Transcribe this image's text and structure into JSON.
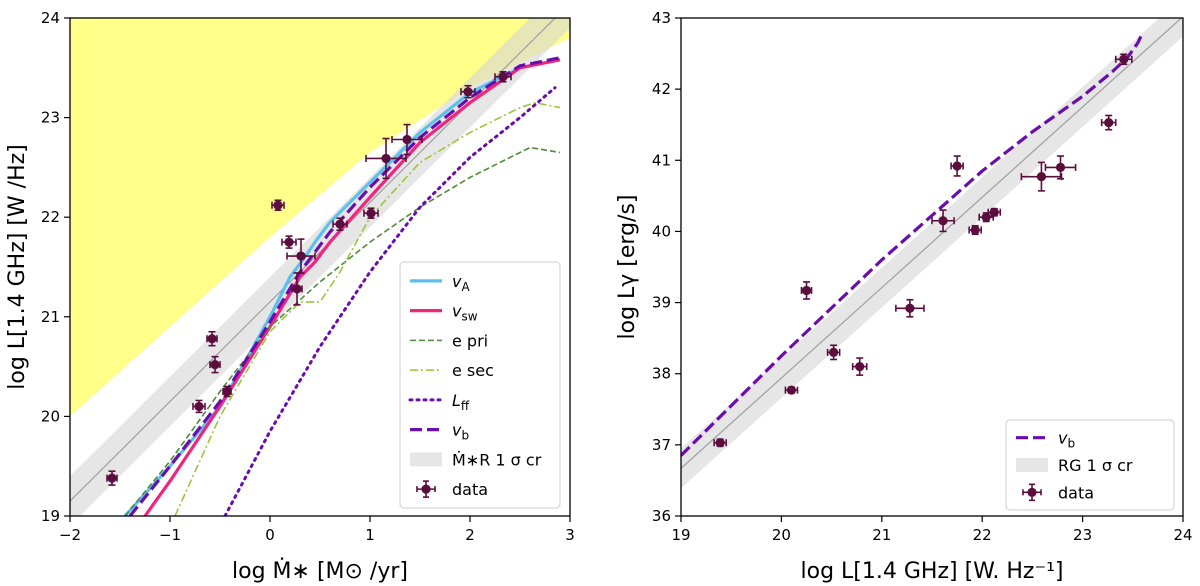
{
  "colors": {
    "yellow_region": "#ffff8a",
    "band": "#d6d6d6",
    "band_line": "#9e9e9e",
    "vA": "#5bc0eb",
    "vsw": "#f0257d",
    "e_pri": "#4e8a3c",
    "e_sec": "#9bc53d",
    "Lff": "#6a0dad",
    "vb": "#6a0dad",
    "data": "#5b0e3d"
  },
  "chart_data": [
    {
      "type": "line",
      "xlim": [
        -2,
        3
      ],
      "ylim": [
        19,
        24
      ],
      "xticks": [
        "−2",
        "−1",
        "0",
        "1",
        "2",
        "3"
      ],
      "yticks": [
        "19",
        "20",
        "21",
        "22",
        "23",
        "24"
      ],
      "xlabel": "log Ṁ∗ [M⊙ /yr]",
      "ylabel": "log L[1.4 GHz] [W /Hz]",
      "yellow_region": [
        [
          -2,
          20.0
        ],
        [
          0,
          21.8
        ],
        [
          1,
          22.65
        ],
        [
          2,
          23.3
        ],
        [
          3,
          23.8
        ],
        [
          3,
          24
        ],
        [
          -2,
          24
        ]
      ],
      "band": {
        "slope": 1.0,
        "intercept": 21.15,
        "half_width": 0.25,
        "x_range": [
          -2,
          3
        ]
      },
      "series": [
        {
          "name": "vA",
          "style": "solid",
          "color_key": "vA",
          "x": [
            -1.45,
            -1.0,
            -0.5,
            0.0,
            0.2,
            0.35,
            0.45,
            0.6,
            1.0,
            1.5,
            2.0,
            2.5,
            2.9
          ],
          "y": [
            19.0,
            19.5,
            20.1,
            21.0,
            21.4,
            21.6,
            21.75,
            21.95,
            22.35,
            22.85,
            23.25,
            23.5,
            23.58
          ]
        },
        {
          "name": "vsw",
          "style": "solid",
          "color_key": "vsw",
          "x": [
            -1.25,
            -1.0,
            -0.5,
            0.0,
            0.3,
            0.45,
            0.6,
            1.0,
            1.5,
            2.0,
            2.5,
            2.9
          ],
          "y": [
            19.0,
            19.35,
            20.1,
            20.9,
            21.4,
            21.55,
            21.75,
            22.2,
            22.75,
            23.15,
            23.5,
            23.58
          ]
        },
        {
          "name": "e pri",
          "style": "dashed",
          "color_key": "e_pri",
          "x": [
            -1.45,
            -1.0,
            -0.5,
            0.0,
            0.5,
            1.0,
            1.5,
            2.0,
            2.5,
            2.6,
            2.9
          ],
          "y": [
            19.0,
            19.55,
            20.25,
            20.9,
            21.35,
            21.75,
            22.1,
            22.4,
            22.65,
            22.7,
            22.65
          ]
        },
        {
          "name": "e sec",
          "style": "dashdot",
          "color_key": "e_sec",
          "x": [
            -0.95,
            -0.5,
            0.0,
            0.3,
            0.5,
            0.7,
            1.0,
            1.5,
            2.0,
            2.5,
            2.65,
            2.9
          ],
          "y": [
            19.0,
            20.0,
            20.85,
            21.15,
            21.15,
            21.45,
            22.0,
            22.55,
            22.85,
            23.1,
            23.15,
            23.1
          ]
        },
        {
          "name": "Lff",
          "style": "dotted",
          "color_key": "Lff",
          "x": [
            -0.45,
            0.0,
            0.5,
            1.0,
            1.5,
            2.0,
            2.5,
            2.85
          ],
          "y": [
            19.0,
            19.85,
            20.7,
            21.45,
            22.1,
            22.6,
            23.0,
            23.3
          ]
        },
        {
          "name": "vb",
          "style": "longdash",
          "color_key": "vb",
          "x": [
            -1.4,
            -1.0,
            -0.5,
            0.0,
            0.3,
            0.6,
            1.0,
            1.5,
            2.0,
            2.5,
            2.9
          ],
          "y": [
            19.0,
            19.5,
            20.15,
            20.95,
            21.45,
            21.85,
            22.3,
            22.8,
            23.2,
            23.52,
            23.6
          ]
        }
      ],
      "data_points": [
        {
          "x": -1.58,
          "y": 19.38,
          "xerr": 0.05,
          "yerr": 0.07
        },
        {
          "x": -0.71,
          "y": 20.1,
          "xerr": 0.06,
          "yerr": 0.06
        },
        {
          "x": -0.58,
          "y": 20.78,
          "xerr": 0.05,
          "yerr": 0.07
        },
        {
          "x": -0.55,
          "y": 20.52,
          "xerr": 0.05,
          "yerr": 0.08
        },
        {
          "x": -0.43,
          "y": 20.25,
          "xerr": 0.04,
          "yerr": 0.05
        },
        {
          "x": 0.08,
          "y": 22.12,
          "xerr": 0.06,
          "yerr": 0.05
        },
        {
          "x": 0.19,
          "y": 21.75,
          "xerr": 0.07,
          "yerr": 0.06
        },
        {
          "x": 0.27,
          "y": 21.28,
          "xerr": 0.05,
          "yerr": 0.16
        },
        {
          "x": 0.31,
          "y": 21.61,
          "xerr": 0.14,
          "yerr": 0.17
        },
        {
          "x": 0.7,
          "y": 21.93,
          "xerr": 0.07,
          "yerr": 0.06
        },
        {
          "x": 1.01,
          "y": 22.04,
          "xerr": 0.07,
          "yerr": 0.05
        },
        {
          "x": 1.16,
          "y": 22.59,
          "xerr": 0.2,
          "yerr": 0.2
        },
        {
          "x": 1.37,
          "y": 22.78,
          "xerr": 0.15,
          "yerr": 0.15
        },
        {
          "x": 1.98,
          "y": 23.26,
          "xerr": 0.07,
          "yerr": 0.06
        },
        {
          "x": 2.33,
          "y": 23.41,
          "xerr": 0.08,
          "yerr": 0.05
        }
      ],
      "legend": {
        "placement": "lower-right",
        "entries": [
          {
            "label": "v",
            "sub": "A",
            "key": "vA"
          },
          {
            "label": "v",
            "sub": "sw",
            "key": "vsw"
          },
          {
            "label": "e pri",
            "sub": "",
            "key": "e_pri"
          },
          {
            "label": "e sec",
            "sub": "",
            "key": "e_sec"
          },
          {
            "label": "L",
            "sub": "ff",
            "key": "Lff"
          },
          {
            "label": "v",
            "sub": "b",
            "key": "vb"
          },
          {
            "label": "Ṁ∗R 1 σ cr",
            "sub": "",
            "key": "band"
          },
          {
            "label": "data",
            "sub": "",
            "key": "data"
          }
        ]
      }
    },
    {
      "type": "line",
      "xlim": [
        19,
        24
      ],
      "ylim": [
        36,
        43
      ],
      "xticks": [
        "19",
        "20",
        "21",
        "22",
        "23",
        "24"
      ],
      "yticks": [
        "36",
        "37",
        "38",
        "39",
        "40",
        "41",
        "42",
        "43"
      ],
      "xlabel": "log L[1.4 GHz] [W. Hz⁻¹]",
      "ylabel": "log Lγ [erg/s]",
      "band": {
        "slope": 1.27,
        "intercept": 12.54,
        "half_width": 0.28,
        "x_range": [
          19,
          24
        ]
      },
      "series": [
        {
          "name": "vb",
          "style": "longdash",
          "color_key": "vb",
          "x": [
            19.0,
            20.0,
            21.0,
            22.0,
            22.5,
            23.0,
            23.3,
            23.45,
            23.55,
            23.6
          ],
          "y": [
            36.85,
            38.25,
            39.6,
            40.85,
            41.4,
            41.9,
            42.25,
            42.45,
            42.65,
            42.8
          ]
        }
      ],
      "data_points": [
        {
          "x": 19.39,
          "y": 37.03,
          "xerr": 0.06,
          "yerr": 0.05
        },
        {
          "x": 20.1,
          "y": 37.77,
          "xerr": 0.06,
          "yerr": 0.04
        },
        {
          "x": 20.25,
          "y": 39.17,
          "xerr": 0.05,
          "yerr": 0.12
        },
        {
          "x": 20.52,
          "y": 38.3,
          "xerr": 0.06,
          "yerr": 0.1
        },
        {
          "x": 20.78,
          "y": 38.1,
          "xerr": 0.07,
          "yerr": 0.12
        },
        {
          "x": 21.28,
          "y": 38.92,
          "xerr": 0.14,
          "yerr": 0.12
        },
        {
          "x": 21.61,
          "y": 40.15,
          "xerr": 0.11,
          "yerr": 0.15
        },
        {
          "x": 21.75,
          "y": 40.92,
          "xerr": 0.06,
          "yerr": 0.14
        },
        {
          "x": 21.93,
          "y": 40.02,
          "xerr": 0.06,
          "yerr": 0.06
        },
        {
          "x": 22.04,
          "y": 40.2,
          "xerr": 0.07,
          "yerr": 0.06
        },
        {
          "x": 22.12,
          "y": 40.27,
          "xerr": 0.06,
          "yerr": 0.05
        },
        {
          "x": 22.59,
          "y": 40.77,
          "xerr": 0.2,
          "yerr": 0.2
        },
        {
          "x": 22.78,
          "y": 40.9,
          "xerr": 0.15,
          "yerr": 0.16
        },
        {
          "x": 23.26,
          "y": 41.53,
          "xerr": 0.07,
          "yerr": 0.1
        },
        {
          "x": 23.41,
          "y": 42.42,
          "xerr": 0.08,
          "yerr": 0.07
        }
      ],
      "legend": {
        "placement": "lower-right",
        "entries": [
          {
            "label": "v",
            "sub": "b",
            "key": "vb"
          },
          {
            "label": "RG 1 σ cr",
            "sub": "",
            "key": "band"
          },
          {
            "label": "data",
            "sub": "",
            "key": "data"
          }
        ]
      }
    }
  ]
}
